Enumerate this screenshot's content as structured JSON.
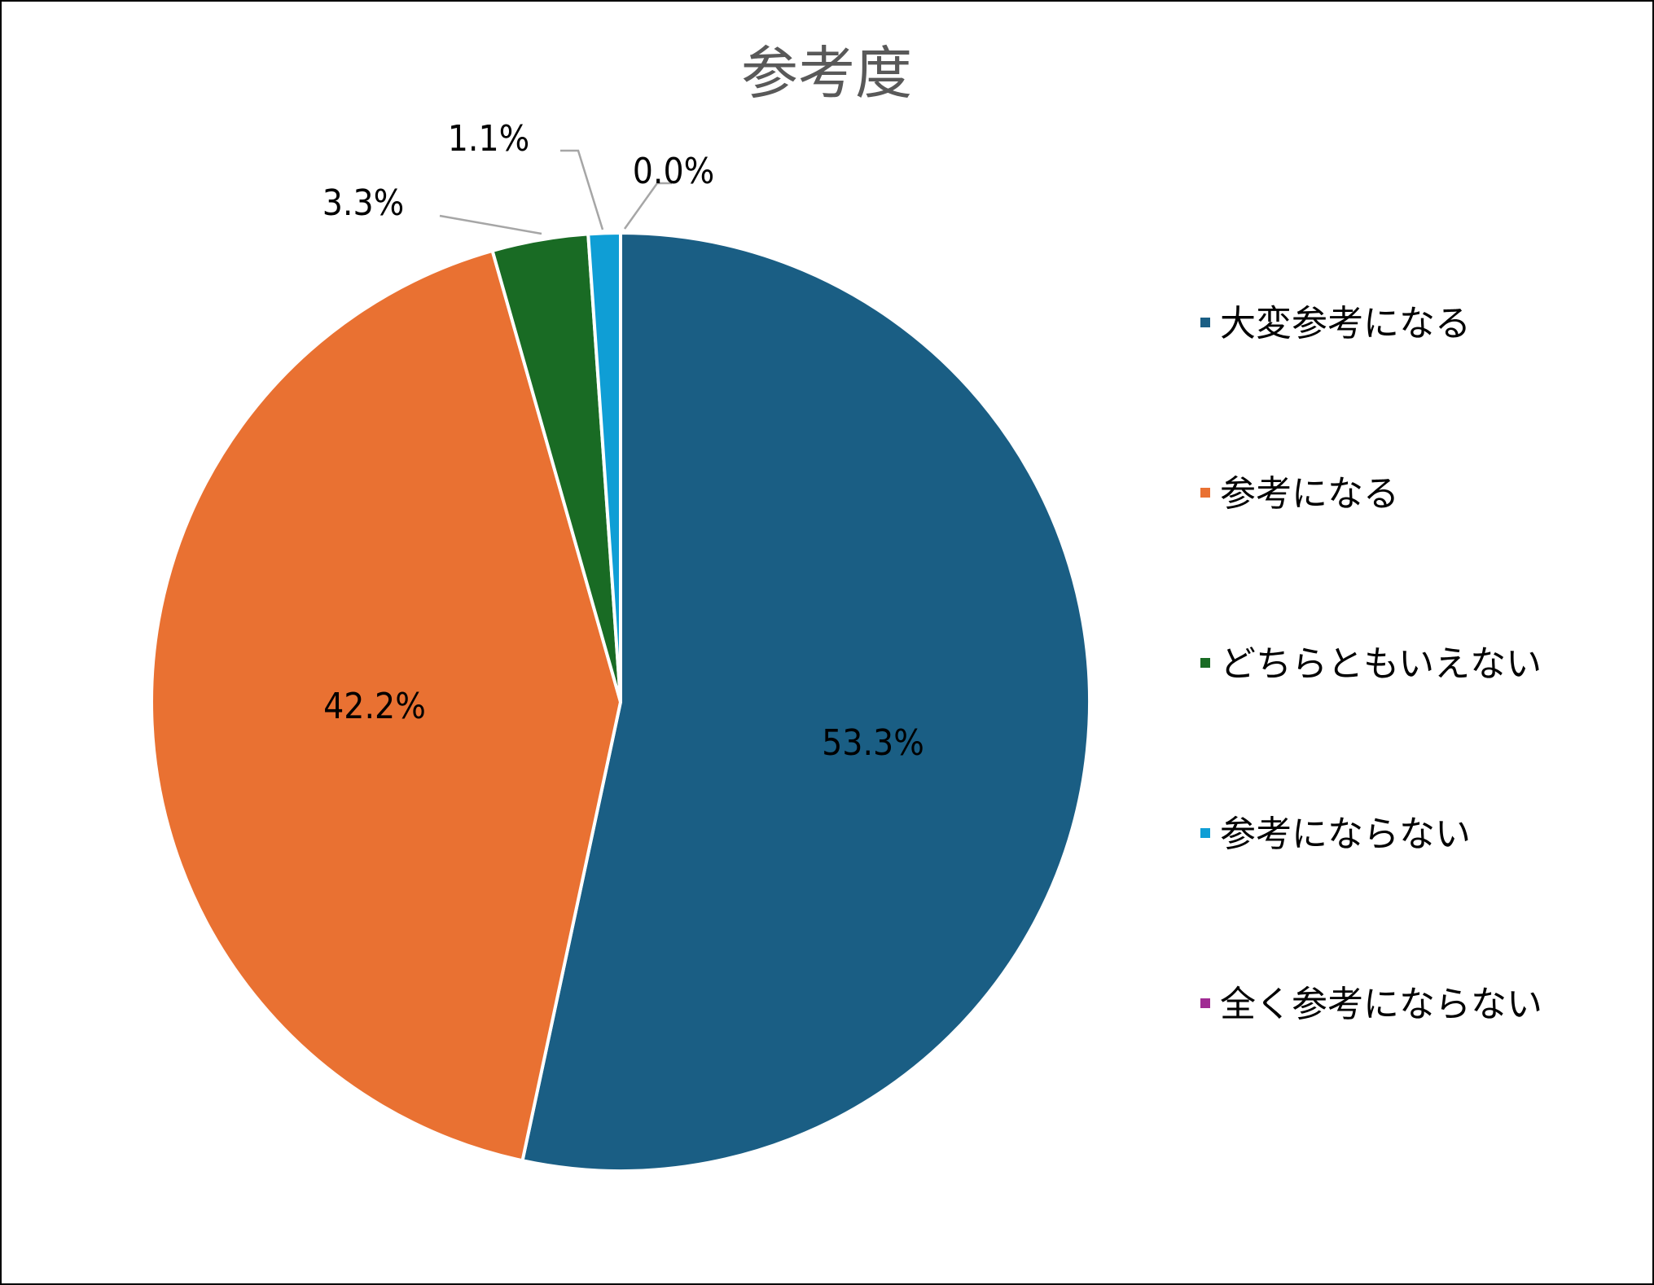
{
  "chart_data": {
    "type": "pie",
    "title": "参考度",
    "legend_position": "right",
    "categories": [
      "大変参考になる",
      "参考になる",
      "どちらともいえない",
      "参考にならない",
      "全く参考にならない"
    ],
    "values": [
      53.3,
      42.2,
      3.3,
      1.1,
      0.0
    ],
    "labels": [
      "53.3%",
      "42.2%",
      "3.3%",
      "1.1%",
      "0.0%"
    ],
    "colors": [
      "#1A5E84",
      "#E97132",
      "#196B24",
      "#0F9ED5",
      "#A02B93"
    ],
    "leader_line_color": "#A6A6A6"
  }
}
